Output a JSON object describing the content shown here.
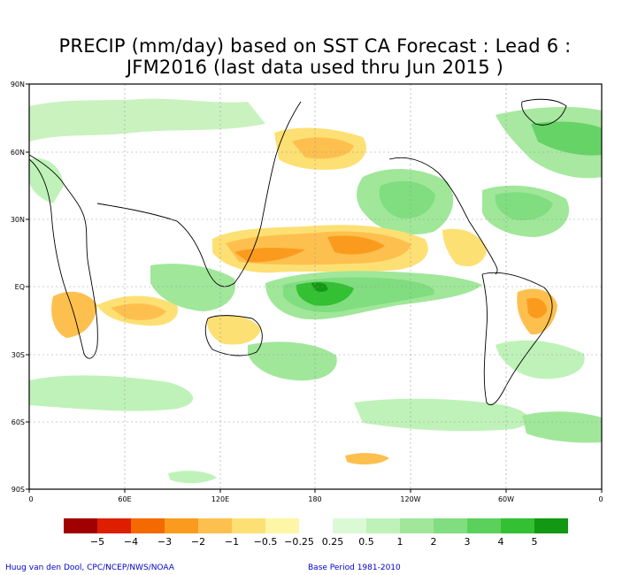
{
  "title_line1": "PRECIP (mm/day) based on SST CA Forecast : Lead 6 :",
  "title_line2": "JFM2016 (last data used thru Jun 2015 )",
  "lat_labels": [
    "90N",
    "60N",
    "30N",
    "EQ",
    "30S",
    "60S",
    "90S"
  ],
  "lon_labels": [
    "0",
    "60E",
    "120E",
    "180",
    "120W",
    "60W",
    "0"
  ],
  "legend": {
    "colors": [
      "#a00000",
      "#dd1f00",
      "#f56a00",
      "#fb9b1e",
      "#fdc04f",
      "#fde073",
      "#fdf6a7",
      "#ffffff",
      "#dcf9d6",
      "#bff2b8",
      "#a0e79a",
      "#80dd80",
      "#5ad15a",
      "#33c033",
      "#129812"
    ],
    "labels": [
      "−5",
      "−4",
      "−3",
      "−2",
      "−1",
      "−0.5",
      "−0.25",
      "0.25",
      "0.5",
      "1",
      "2",
      "3",
      "4",
      "5"
    ]
  },
  "credit": "Huug van den Dool, CPC/NCEP/NWS/NOAA",
  "base_period": "Base Period 1981-2010"
}
